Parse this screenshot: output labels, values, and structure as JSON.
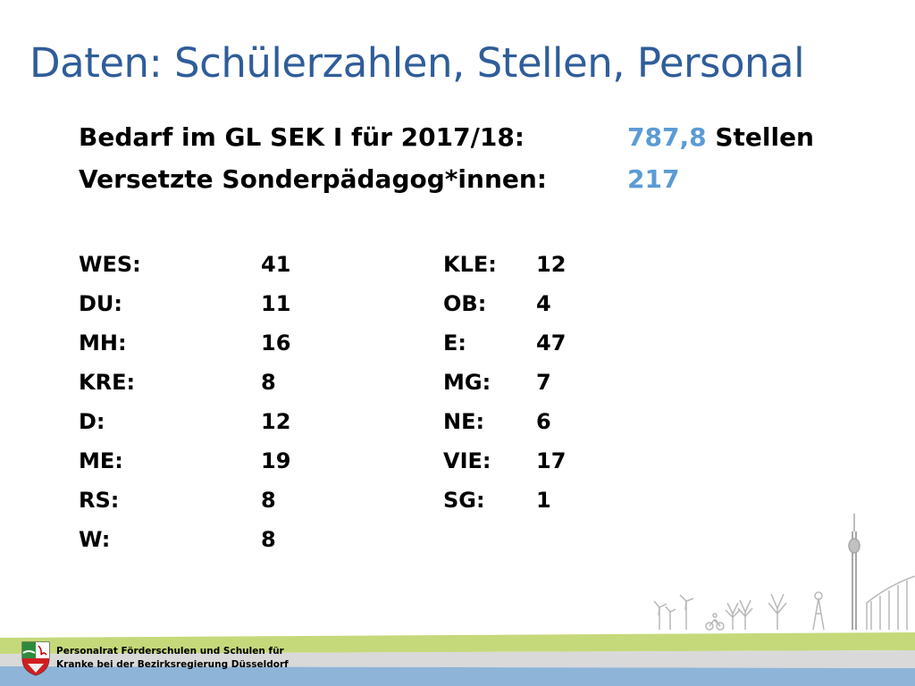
{
  "slide": {
    "title": "Daten: Schülerzahlen, Stellen, Personal"
  },
  "summary": {
    "demand_label": "Bedarf im GL SEK I für 2017/18:",
    "demand_value": "787,8",
    "demand_unit": " Stellen",
    "transferred_label": "Versetzte Sonderpädagog*innen:",
    "transferred_value": "217"
  },
  "districts_left": [
    {
      "code": "WES:",
      "count": "41"
    },
    {
      "code": "DU:",
      "count": "11"
    },
    {
      "code": "MH:",
      "count": "16"
    },
    {
      "code": "KRE:",
      "count": "8"
    },
    {
      "code": "D:",
      "count": "12"
    },
    {
      "code": "ME:",
      "count": "19"
    },
    {
      "code": "RS:",
      "count": "8"
    },
    {
      "code": "W:",
      "count": "8"
    }
  ],
  "districts_right": [
    {
      "code": "KLE:",
      "count": "12"
    },
    {
      "code": "OB:",
      "count": "4"
    },
    {
      "code": "E:",
      "count": "47"
    },
    {
      "code": "MG:",
      "count": "7"
    },
    {
      "code": "NE:",
      "count": "6"
    },
    {
      "code": "VIE:",
      "count": "17"
    },
    {
      "code": "SG:",
      "count": "1"
    }
  ],
  "footer": {
    "line1": "Personalrat Förderschulen und Schulen für",
    "line2": "Kranke bei der Bezirksregierung Düsseldorf",
    "logo_icon": "nrw-coat-of-arms-icon"
  },
  "colors": {
    "title": "#2f5d9a",
    "highlight": "#5b9bd5",
    "band_green": "#c5d97a",
    "band_blue": "#8eb4d8"
  }
}
